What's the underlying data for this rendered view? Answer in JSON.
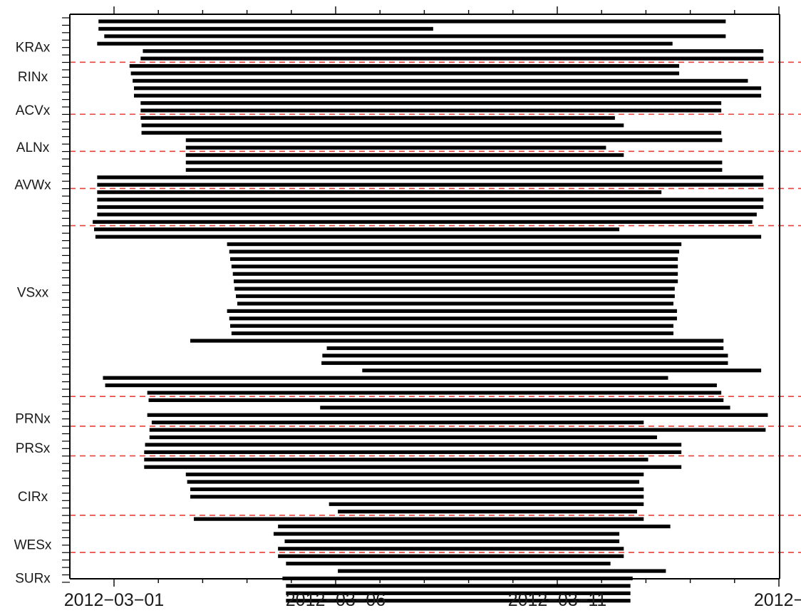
{
  "chart_data": {
    "type": "gantt",
    "x_axis": {
      "tick_labels": [
        "2012-03-01",
        "2012-03-06",
        "2012-03-11",
        "2012-"
      ],
      "tick_values_days": [
        0,
        5,
        10,
        15
      ],
      "xlim_days": [
        -1,
        15
      ]
    },
    "groups": [
      {
        "name": "KRAx",
        "label_row": 3.5,
        "bars": [
          [
            -0.35,
            13.8
          ],
          [
            -0.35,
            7.2
          ],
          [
            -0.22,
            13.8
          ],
          [
            -0.38,
            12.6
          ]
        ]
      },
      {
        "name": "RINx",
        "label_row": 7.5,
        "bars": [
          [
            0.65,
            14.65
          ],
          [
            0.6,
            14.65
          ],
          [
            0.35,
            12.75
          ],
          [
            0.38,
            12.75
          ],
          [
            0.42,
            14.3
          ],
          [
            0.45,
            14.6
          ],
          [
            0.45,
            14.6
          ]
        ]
      },
      {
        "name": "ACVx",
        "label_row": 12.0,
        "bars": [
          [
            0.6,
            13.7
          ],
          [
            0.6,
            13.7
          ],
          [
            0.6,
            11.3
          ],
          [
            0.62,
            11.5
          ],
          [
            0.62,
            13.7
          ]
        ]
      },
      {
        "name": "ALNx",
        "label_row": 17.0,
        "bars": [
          [
            1.62,
            13.72
          ],
          [
            1.62,
            11.1
          ],
          [
            1.62,
            11.5
          ],
          [
            1.62,
            13.72
          ],
          [
            1.62,
            13.72
          ]
        ]
      },
      {
        "name": "AVWx",
        "label_row": 22.0,
        "bars": [
          [
            -0.38,
            14.65
          ],
          [
            -0.38,
            14.65
          ],
          [
            -0.38,
            12.35
          ],
          [
            -0.38,
            14.65
          ],
          [
            -0.38,
            14.65
          ],
          [
            -0.38,
            14.5
          ]
        ]
      },
      {
        "name": "VSxx",
        "label_row": 36.5,
        "bars": [
          [
            -0.48,
            14.4
          ],
          [
            -0.45,
            11.4
          ],
          [
            -0.42,
            14.6
          ],
          [
            2.55,
            12.8
          ],
          [
            2.6,
            12.75
          ],
          [
            2.62,
            12.72
          ],
          [
            2.65,
            12.72
          ],
          [
            2.68,
            12.72
          ],
          [
            2.7,
            12.72
          ],
          [
            2.72,
            12.65
          ],
          [
            2.75,
            12.65
          ],
          [
            2.78,
            12.62
          ],
          [
            2.55,
            12.7
          ],
          [
            2.6,
            12.7
          ],
          [
            2.62,
            12.62
          ],
          [
            2.65,
            12.62
          ],
          [
            1.72,
            13.75
          ],
          [
            4.8,
            13.75
          ],
          [
            4.7,
            13.85
          ],
          [
            4.68,
            13.85
          ],
          [
            5.6,
            14.6
          ],
          [
            -0.25,
            12.5
          ],
          [
            -0.2,
            13.6
          ],
          [
            0.75,
            13.7
          ],
          [
            0.78,
            13.75
          ],
          [
            4.65,
            13.9
          ]
        ]
      },
      {
        "name": "PRNx",
        "label_row": 53.5,
        "bars": [
          [
            0.75,
            14.75
          ],
          [
            0.85,
            11.95
          ],
          [
            0.8,
            14.7
          ],
          [
            0.8,
            12.25
          ]
        ]
      },
      {
        "name": "PRSx",
        "label_row": 57.5,
        "bars": [
          [
            0.7,
            12.8
          ],
          [
            0.68,
            12.8
          ],
          [
            0.68,
            12.05
          ],
          [
            0.68,
            12.8
          ]
        ]
      },
      {
        "name": "CIRx",
        "label_row": 64.0,
        "bars": [
          [
            1.62,
            11.95
          ],
          [
            1.65,
            11.85
          ],
          [
            1.72,
            11.95
          ],
          [
            1.72,
            11.95
          ],
          [
            4.85,
            11.95
          ],
          [
            5.05,
            11.8
          ],
          [
            1.8,
            11.95
          ]
        ]
      },
      {
        "name": "WESx",
        "label_row": 70.5,
        "bars": [
          [
            3.7,
            12.55
          ],
          [
            3.6,
            11.4
          ],
          [
            3.85,
            11.4
          ],
          [
            3.7,
            11.5
          ],
          [
            3.7,
            11.5
          ],
          [
            3.88,
            11.2
          ]
        ]
      },
      {
        "name": "SURx",
        "label_row": 75.0,
        "bars": [
          [
            5.05,
            12.45
          ],
          [
            3.8,
            11.7
          ],
          [
            3.88,
            11.65
          ],
          [
            3.88,
            11.65
          ],
          [
            3.88,
            11.65
          ]
        ]
      }
    ],
    "separator_rows": [
      6,
      13,
      18,
      23,
      28,
      51,
      55,
      59,
      67,
      72
    ],
    "total_rows": 77,
    "colors": {
      "bar": "#000000",
      "separator": "#e8413a",
      "axis": "#000000",
      "text": "#1a1a1a"
    }
  }
}
